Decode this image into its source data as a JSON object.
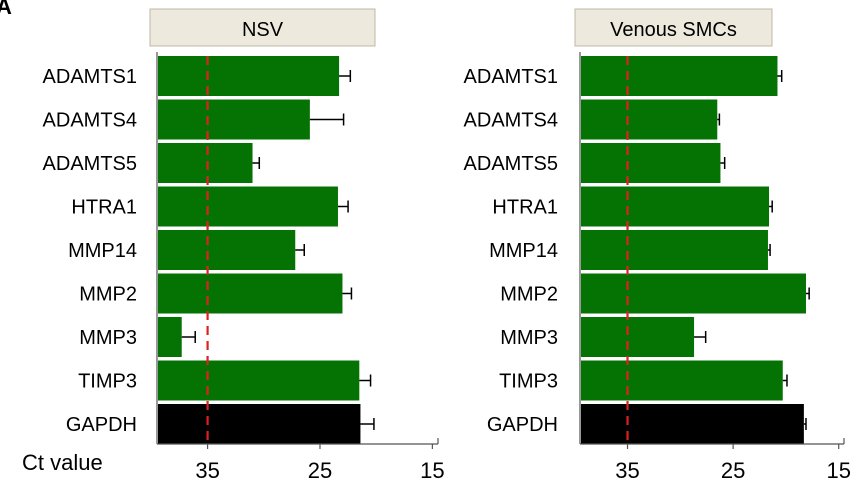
{
  "panel_label": "A",
  "x_axis_caption": "Ct value",
  "colors": {
    "bar": "#047304",
    "reference_bar": "#000000",
    "threshold_line": "#e02020",
    "panel_header_bg": "#ede9dc"
  },
  "chart_data": [
    {
      "type": "bar",
      "orientation": "horizontal",
      "title": "NSV",
      "categories": [
        "ADAMTS1",
        "ADAMTS4",
        "ADAMTS5",
        "HTRA1",
        "MMP14",
        "MMP2",
        "MMP3",
        "TIMP3",
        "GAPDH"
      ],
      "values": [
        23.3,
        25.9,
        31.0,
        23.4,
        27.2,
        23.0,
        37.3,
        21.5,
        21.4
      ],
      "errors": [
        1.0,
        3.0,
        0.6,
        0.9,
        0.8,
        0.8,
        1.2,
        1.0,
        1.2
      ],
      "bar_colors": [
        "#047304",
        "#047304",
        "#047304",
        "#047304",
        "#047304",
        "#047304",
        "#047304",
        "#047304",
        "#000000"
      ],
      "x_axis": {
        "reversed": true,
        "xlim": [
          39.5,
          14.5
        ],
        "ticks": [
          35,
          25,
          15
        ],
        "label": ""
      },
      "threshold": 35,
      "grid": false
    },
    {
      "type": "bar",
      "orientation": "horizontal",
      "title": "Venous SMCs",
      "categories": [
        "ADAMTS1",
        "ADAMTS4",
        "ADAMTS5",
        "HTRA1",
        "MMP14",
        "MMP2",
        "MMP3",
        "TIMP3",
        "GAPDH"
      ],
      "values": [
        20.8,
        26.5,
        26.2,
        21.6,
        21.7,
        18.1,
        28.7,
        20.3,
        18.3
      ],
      "errors": [
        0.4,
        0.2,
        0.4,
        0.3,
        0.2,
        0.3,
        1.1,
        0.4,
        0.2
      ],
      "bar_colors": [
        "#047304",
        "#047304",
        "#047304",
        "#047304",
        "#047304",
        "#047304",
        "#047304",
        "#047304",
        "#000000"
      ],
      "x_axis": {
        "reversed": true,
        "xlim": [
          39.5,
          14.5
        ],
        "ticks": [
          35,
          25,
          15
        ],
        "label": ""
      },
      "threshold": 35,
      "grid": false
    }
  ]
}
